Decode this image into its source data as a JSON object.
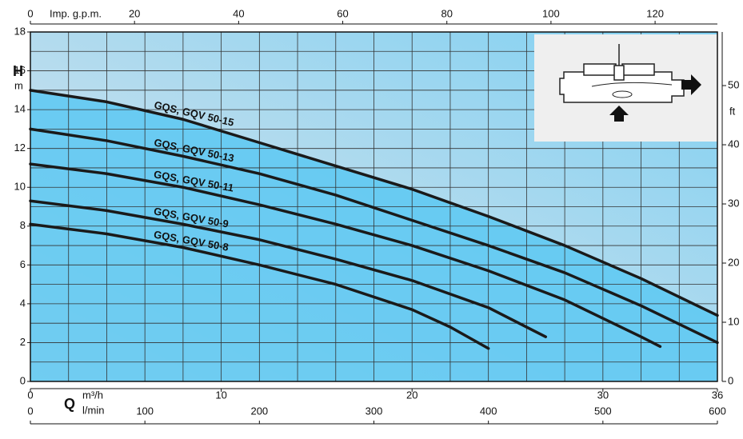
{
  "chart_data": {
    "type": "line",
    "ylabel": "H",
    "yunit": "m",
    "y2label": "ft",
    "xlabel": "Q",
    "xunit": "m³/h",
    "x2unit": "l/min",
    "x3unit": "Imp. g.p.m.",
    "xlim": [
      0,
      36
    ],
    "xticks": [
      0,
      10,
      20,
      30,
      36
    ],
    "xgrid": [
      0,
      2,
      4,
      6,
      8,
      10,
      12,
      14,
      16,
      18,
      20,
      22,
      24,
      26,
      28,
      30,
      32,
      34,
      36
    ],
    "ylim": [
      0,
      18
    ],
    "yticks": [
      0,
      2,
      4,
      6,
      8,
      10,
      12,
      14,
      16,
      18
    ],
    "ygrid": [
      0,
      1,
      2,
      3,
      4,
      5,
      6,
      7,
      8,
      9,
      10,
      11,
      12,
      13,
      14,
      15,
      16,
      17,
      18
    ],
    "y2lim": [
      0,
      59.06
    ],
    "y2ticks": [
      0,
      10,
      20,
      30,
      40,
      50
    ],
    "x2lim": [
      0,
      600
    ],
    "x2ticks": [
      0,
      100,
      200,
      300,
      400,
      500,
      600
    ],
    "x3lim": [
      0,
      131.97
    ],
    "x3ticks": [
      0,
      20,
      40,
      60,
      80,
      100,
      120
    ],
    "area_color": "#5cc8f2",
    "series": [
      {
        "name": "GQS, GQV 50-15",
        "color": "#1a1a1a",
        "x": [
          0,
          4,
          8,
          12,
          16,
          20,
          24,
          28,
          32,
          36
        ],
        "values": [
          15.0,
          14.4,
          13.5,
          12.3,
          11.1,
          9.9,
          8.5,
          7.0,
          5.3,
          3.4
        ]
      },
      {
        "name": "GQS, GQV 50-13",
        "color": "#1a1a1a",
        "x": [
          0,
          4,
          8,
          12,
          16,
          20,
          24,
          28,
          32,
          36
        ],
        "values": [
          13.0,
          12.4,
          11.6,
          10.7,
          9.6,
          8.3,
          7.0,
          5.6,
          3.9,
          2.0
        ]
      },
      {
        "name": "GQS, GQV 50-11",
        "color": "#1a1a1a",
        "x": [
          0,
          4,
          8,
          12,
          16,
          20,
          24,
          28,
          32,
          33
        ],
        "values": [
          11.2,
          10.7,
          10.0,
          9.1,
          8.1,
          7.0,
          5.7,
          4.2,
          2.3,
          1.8
        ]
      },
      {
        "name": "GQS, GQV 50-9",
        "color": "#1a1a1a",
        "x": [
          0,
          4,
          8,
          12,
          16,
          20,
          24,
          27
        ],
        "values": [
          9.3,
          8.8,
          8.1,
          7.3,
          6.3,
          5.2,
          3.8,
          2.3
        ]
      },
      {
        "name": "GQS, GQV 50-8",
        "color": "#1a1a1a",
        "x": [
          0,
          4,
          8,
          12,
          16,
          20,
          22,
          24
        ],
        "values": [
          8.1,
          7.6,
          6.9,
          6.0,
          5.0,
          3.7,
          2.8,
          1.7
        ]
      }
    ]
  }
}
